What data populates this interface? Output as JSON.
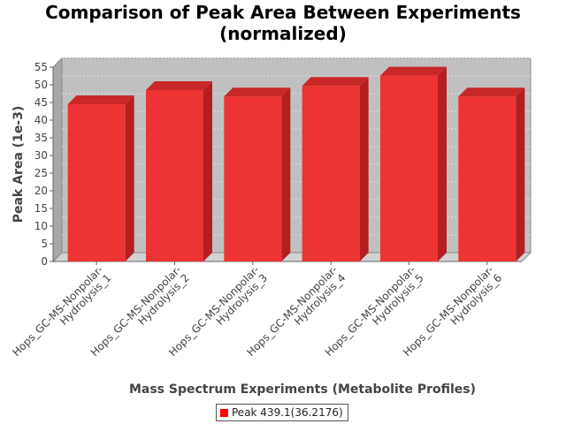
{
  "chart_data": {
    "type": "bar",
    "title_lines": [
      "Comparison of Peak Area Between Experiments",
      "(normalized)"
    ],
    "xlabel": "Mass Spectrum Experiments (Metabolite Profiles)",
    "ylabel": "Peak Area (1e-3)",
    "ylim": [
      0,
      55
    ],
    "yticks": [
      0,
      5,
      10,
      15,
      20,
      25,
      30,
      35,
      40,
      45,
      50,
      55
    ],
    "grid": true,
    "legend_position": "bottom-center",
    "categories": [
      [
        "Hops_GC-MS-Nonpolar-",
        "Hydrolysis_1"
      ],
      [
        "Hops_GC-MS-Nonpolar-",
        "Hydrolysis_2"
      ],
      [
        "Hops_GC-MS-Nonpolar-",
        "Hydrolysis_3"
      ],
      [
        "Hops_GC-MS-Nonpolar-",
        "Hydrolysis_4"
      ],
      [
        "Hops_GC-MS-Nonpolar-",
        "Hydrolysis_5"
      ],
      [
        "Hops_GC-MS-Nonpolar-",
        "Hydrolysis_6"
      ]
    ],
    "series": [
      {
        "name": "Peak 439.1(36.2176)",
        "color": "#ff0000",
        "values": [
          44.5,
          48.5,
          46.7,
          49.7,
          52.6,
          46.7
        ]
      }
    ]
  }
}
